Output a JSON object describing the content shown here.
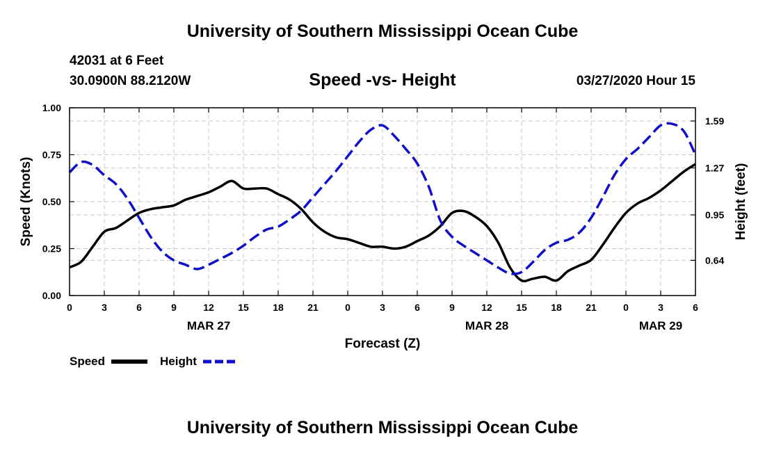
{
  "header": {
    "title": "University of Southern Mississippi Ocean Cube",
    "station": "42031 at 6 Feet",
    "location": "30.0900N 88.2120W",
    "subtitle": "Speed -vs- Height",
    "datetime": "03/27/2020 Hour 15"
  },
  "footer": {
    "title": "University of Southern Mississippi Ocean Cube"
  },
  "chart_data": {
    "type": "line",
    "title": "Speed -vs- Height",
    "xlabel": "Forecast (Z)",
    "ylabel": "Speed (Knots)",
    "y2label": "Height (feet)",
    "xlim": [
      0,
      54
    ],
    "ylim": [
      0,
      1.0
    ],
    "y2lim": [
      0.4,
      1.68
    ],
    "grid": true,
    "x_ticks": [
      0,
      3,
      6,
      9,
      12,
      15,
      18,
      21,
      24,
      27,
      30,
      33,
      36,
      39,
      42,
      45,
      48,
      51,
      54
    ],
    "x_tick_labels": [
      "0",
      "3",
      "6",
      "9",
      "12",
      "15",
      "18",
      "21",
      "0",
      "3",
      "6",
      "9",
      "12",
      "15",
      "18",
      "21",
      "0",
      "3",
      "6"
    ],
    "y_ticks": [
      0,
      0.25,
      0.5,
      0.75,
      1.0
    ],
    "y_tick_labels": [
      "0.00",
      "0.25",
      "0.50",
      "0.75",
      "1.00"
    ],
    "y2_ticks": [
      0.64,
      0.95,
      1.27,
      1.59
    ],
    "y2_tick_labels": [
      "0.64",
      "0.95",
      "1.27",
      "1.59"
    ],
    "date_labels": [
      {
        "x": 12,
        "label": "MAR 27"
      },
      {
        "x": 36,
        "label": "MAR 28"
      },
      {
        "x": 51,
        "label": "MAR 29"
      }
    ],
    "legend": [
      {
        "name": "Speed",
        "color": "#000000",
        "dashed": false
      },
      {
        "name": "Height",
        "color": "#1010c8",
        "dashed": true
      }
    ],
    "series": [
      {
        "name": "Speed",
        "axis": "left",
        "color": "#000000",
        "x": [
          0,
          1,
          2,
          3,
          4,
          5,
          6,
          7,
          8,
          9,
          10,
          11,
          12,
          13,
          14,
          15,
          16,
          17,
          18,
          19,
          20,
          21,
          22,
          23,
          24,
          25,
          26,
          27,
          28,
          29,
          30,
          31,
          32,
          33,
          34,
          35,
          36,
          37,
          38,
          39,
          40,
          41,
          42,
          43,
          44,
          45,
          46,
          47,
          48,
          49,
          50,
          51,
          52,
          53,
          54
        ],
        "values": [
          0.15,
          0.18,
          0.26,
          0.34,
          0.36,
          0.4,
          0.44,
          0.46,
          0.47,
          0.48,
          0.51,
          0.53,
          0.55,
          0.58,
          0.61,
          0.57,
          0.57,
          0.57,
          0.54,
          0.51,
          0.46,
          0.39,
          0.34,
          0.31,
          0.3,
          0.28,
          0.26,
          0.26,
          0.25,
          0.26,
          0.29,
          0.32,
          0.37,
          0.44,
          0.45,
          0.42,
          0.37,
          0.28,
          0.15,
          0.08,
          0.09,
          0.1,
          0.08,
          0.13,
          0.16,
          0.19,
          0.27,
          0.36,
          0.44,
          0.49,
          0.52,
          0.56,
          0.61,
          0.66,
          0.7
        ]
      },
      {
        "name": "Height",
        "axis": "right",
        "color": "#1010c8",
        "x": [
          0,
          1,
          2,
          3,
          4,
          5,
          6,
          7,
          8,
          9,
          10,
          11,
          12,
          13,
          14,
          15,
          16,
          17,
          18,
          19,
          20,
          21,
          22,
          23,
          24,
          25,
          26,
          27,
          28,
          29,
          30,
          31,
          32,
          33,
          34,
          35,
          36,
          37,
          38,
          39,
          40,
          41,
          42,
          43,
          44,
          45,
          46,
          47,
          48,
          49,
          50,
          51,
          52,
          53,
          54
        ],
        "values": [
          1.24,
          1.31,
          1.29,
          1.22,
          1.16,
          1.06,
          0.93,
          0.8,
          0.7,
          0.64,
          0.61,
          0.58,
          0.61,
          0.65,
          0.69,
          0.74,
          0.8,
          0.85,
          0.87,
          0.92,
          0.98,
          1.07,
          1.16,
          1.25,
          1.35,
          1.45,
          1.53,
          1.56,
          1.49,
          1.4,
          1.3,
          1.14,
          0.91,
          0.8,
          0.74,
          0.69,
          0.64,
          0.59,
          0.55,
          0.56,
          0.63,
          0.71,
          0.76,
          0.78,
          0.83,
          0.93,
          1.07,
          1.22,
          1.33,
          1.4,
          1.48,
          1.56,
          1.57,
          1.52,
          1.36
        ]
      }
    ]
  }
}
